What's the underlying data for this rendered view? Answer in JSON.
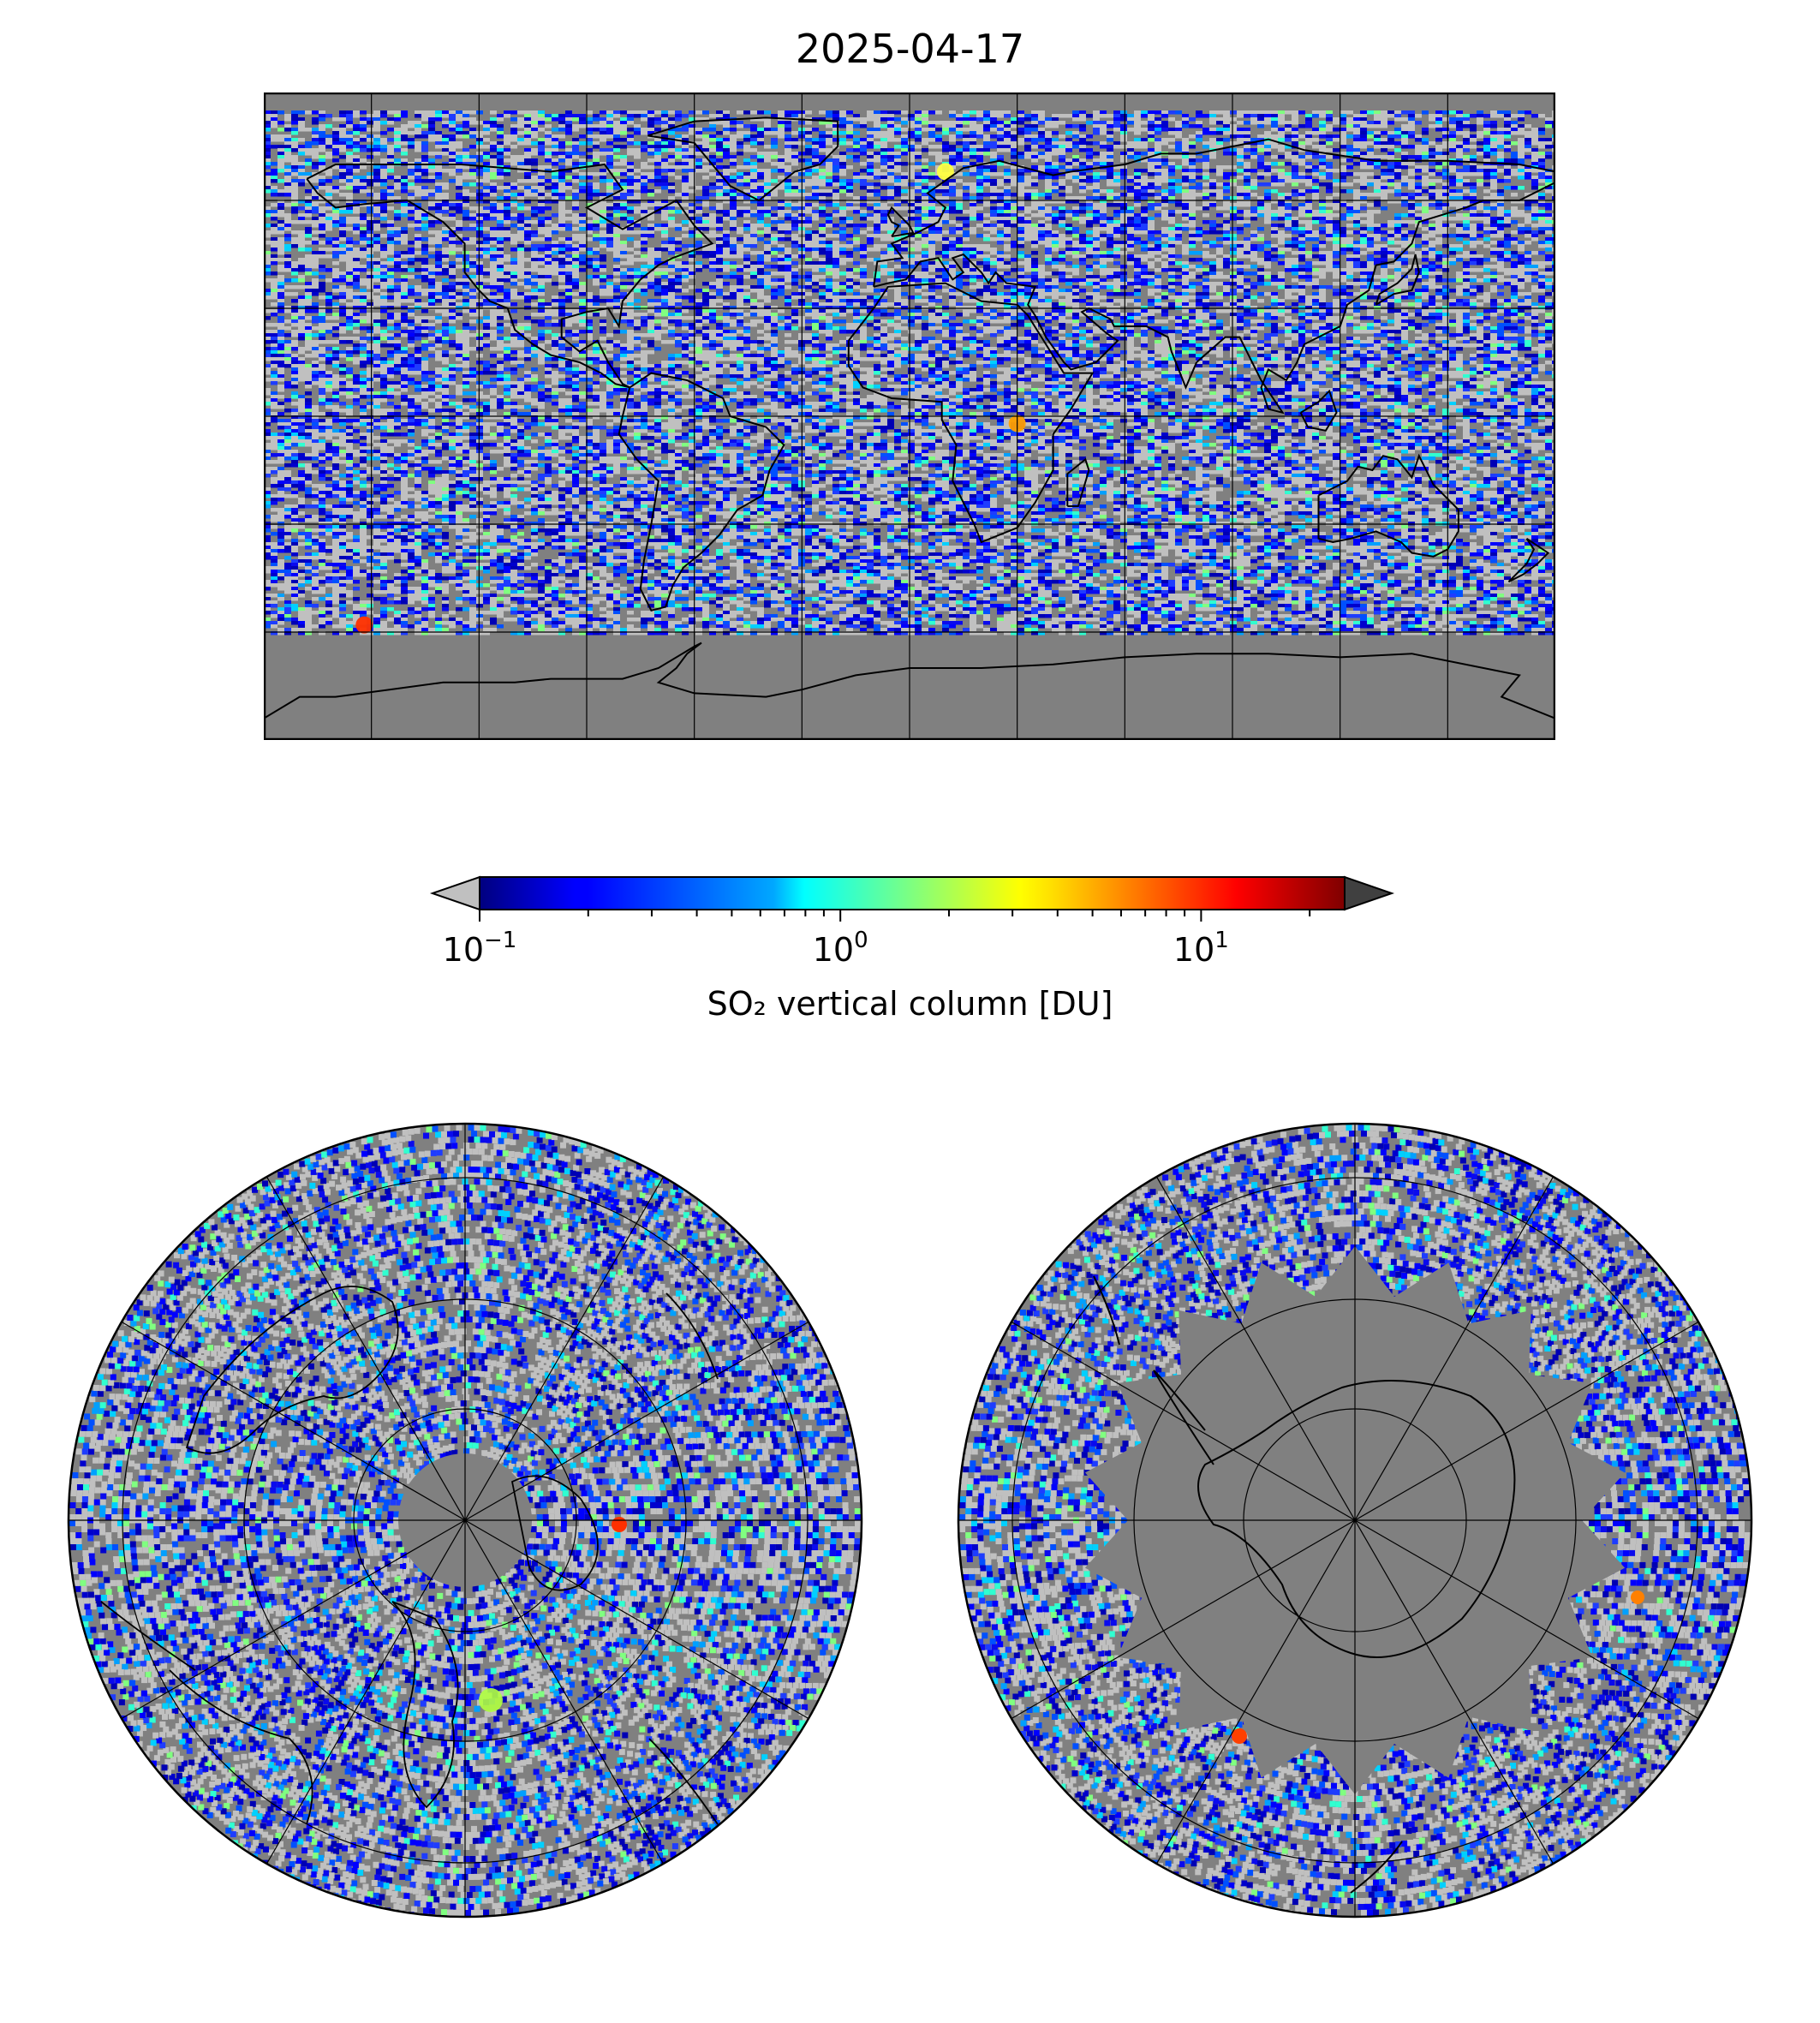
{
  "figure": {
    "title": "2025-04-17"
  },
  "colorbar": {
    "label": "SO₂ vertical column [DU]",
    "scale": "log",
    "range": [
      0.1,
      25
    ],
    "extend": "both",
    "colormap": "jet",
    "under_color": "#c0c0c0",
    "over_color": "#404040",
    "ticks": [
      {
        "base": "10",
        "exp": "−1",
        "value": 0.1
      },
      {
        "base": "10",
        "exp": "0",
        "value": 1
      },
      {
        "base": "10",
        "exp": "1",
        "value": 10
      }
    ]
  },
  "colors": {
    "no_data": "#808080",
    "below_range": "#c0c0c0",
    "graticule": "#000000",
    "coastline": "#000000"
  },
  "maps": {
    "global": {
      "projection": "PlateCarree",
      "lon_range": [
        -180,
        180
      ],
      "lat_range": [
        -90,
        90
      ],
      "grid_lon_step": 30,
      "grid_lat_step": 30
    },
    "north_polar": {
      "projection": "NorthPolarStereo",
      "center": "North Pole"
    },
    "south_polar": {
      "projection": "SouthPolarStereo",
      "center": "South Pole"
    }
  },
  "hotspots": [
    {
      "region": "Central Africa",
      "lon": 30,
      "lat": -2,
      "level": "high"
    },
    {
      "region": "Southern Ocean",
      "lon": -152,
      "lat": -58,
      "level": "very high"
    },
    {
      "region": "Northern Europe/Russia",
      "lon": 10,
      "lat": 68,
      "level": "moderate"
    }
  ]
}
